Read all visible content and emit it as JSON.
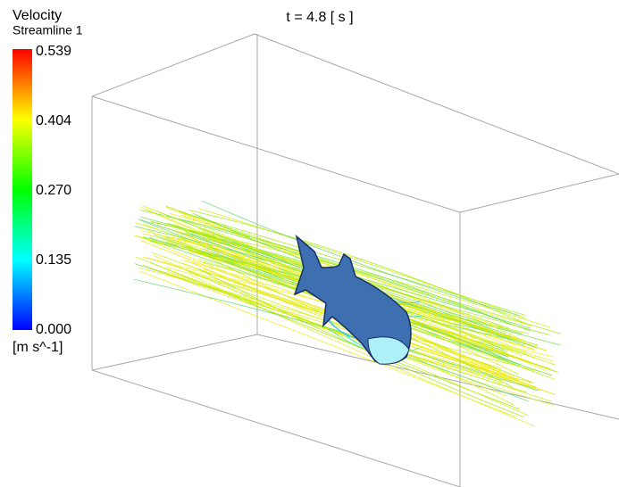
{
  "header": {
    "time": "t = 4.8 [ s ]"
  },
  "legend": {
    "title": "Velocity",
    "subtitle": "Streamline 1",
    "ticks": [
      "0.539",
      "0.404",
      "0.270",
      "0.135",
      "0.000"
    ],
    "units": "[m s^-1]"
  }
}
